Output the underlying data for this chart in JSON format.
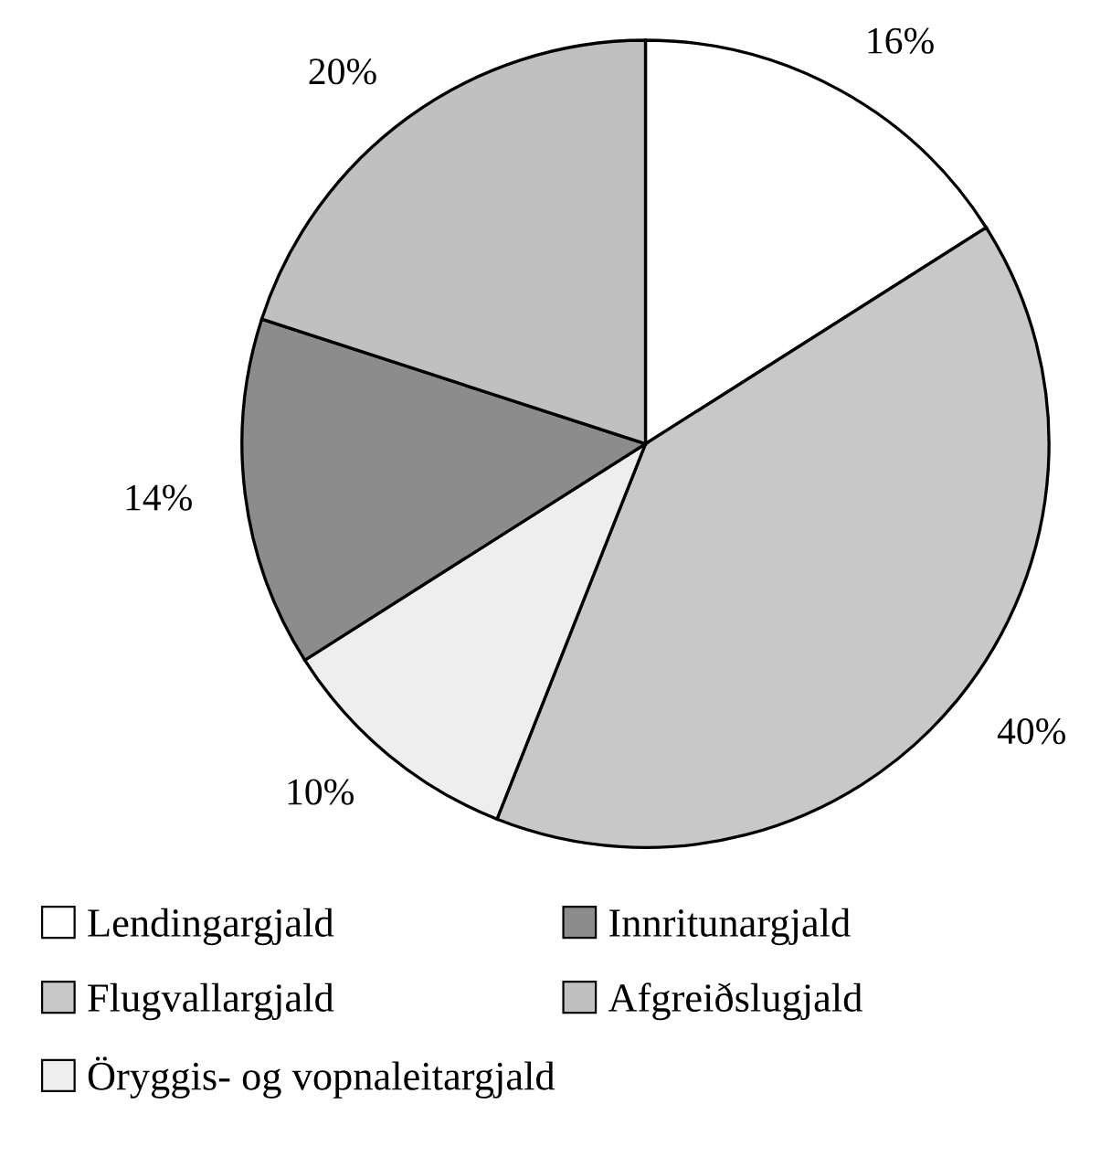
{
  "chart_data": {
    "type": "pie",
    "categories": [
      "Lendingargjald",
      "Flugvallargjald",
      "Öryggis- og vopnaleitargjald",
      "Innritunargjald",
      "Afgreiðslugjald"
    ],
    "values": [
      16,
      40,
      10,
      14,
      20
    ],
    "colors": [
      "#ffffff",
      "#c8c8c8",
      "#eeeeee",
      "#8c8c8c",
      "#c0c0c0"
    ],
    "value_labels": [
      "16%",
      "40%",
      "10%",
      "14%",
      "20%"
    ],
    "legend": "bottom"
  }
}
